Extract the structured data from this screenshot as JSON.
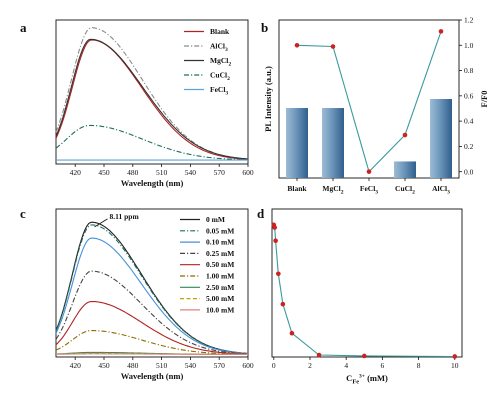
{
  "chart_data": [
    {
      "panel": "a",
      "type": "line",
      "xlabel": "Wavelength (nm)",
      "ylabel": "",
      "xlim": [
        400,
        600
      ],
      "ylim": [
        0,
        1.12
      ],
      "xticks": [
        420,
        450,
        480,
        510,
        540,
        570,
        600
      ],
      "legend_position": "top-right",
      "series": [
        {
          "name": "Blank",
          "color": "#b22222",
          "style": "solid",
          "peak": 0.935,
          "center": 437,
          "w_left": 20,
          "w_right": 52,
          "base": 0.03
        },
        {
          "name": "AlCl",
          "sub": "3",
          "color": "#8c8c8c",
          "style": "dashdot",
          "peak": 1.03,
          "center": 437,
          "w_left": 21,
          "w_right": 53,
          "base": 0.03
        },
        {
          "name": "MgCl",
          "sub": "2",
          "color": "#333333",
          "style": "solid",
          "peak": 0.94,
          "center": 436,
          "w_left": 20,
          "w_right": 54,
          "base": 0.03
        },
        {
          "name": "CuCl",
          "sub": "2",
          "color": "#1f6f5f",
          "style": "dashdot",
          "peak": 0.27,
          "center": 435,
          "w_left": 24,
          "w_right": 55,
          "base": 0.03
        },
        {
          "name": "FeCl",
          "sub": "3",
          "color": "#5aa6d6",
          "style": "solid",
          "peak": 0.0,
          "center": 437,
          "w_left": 20,
          "w_right": 50,
          "base": 0.03
        }
      ]
    },
    {
      "panel": "b",
      "type": "bar",
      "categories": [
        {
          "name": "Blank",
          "sub": ""
        },
        {
          "name": "MgCl",
          "sub": "2"
        },
        {
          "name": "FeCl",
          "sub": "3"
        },
        {
          "name": "CuCl",
          "sub": "2"
        },
        {
          "name": "AlCl",
          "sub": "3"
        }
      ],
      "bar_values": [
        0.93,
        0.93,
        0.0,
        0.22,
        1.05
      ],
      "bar_ylim": [
        0,
        2.1
      ],
      "line_values": [
        1.0,
        0.99,
        0.0,
        0.29,
        1.11
      ],
      "line_color": "#3a9a9a",
      "marker_color": "#cc2222",
      "ylabel_left": "PL Intensity (a.u.)",
      "ylabel_right": "F/F0",
      "ylim_right": [
        -0.05,
        1.2
      ],
      "yticks_right": [
        "0.0",
        "0.2",
        "0.4",
        "0.6",
        "0.8",
        "1.0",
        "1.2"
      ]
    },
    {
      "panel": "c",
      "type": "line",
      "xlabel": "Wavelength (nm)",
      "xlim": [
        400,
        600
      ],
      "ylim": [
        0,
        1.12
      ],
      "xticks": [
        420,
        450,
        480,
        510,
        540,
        570,
        600
      ],
      "annotation": "8.11 ppm",
      "legend_position": "top-right",
      "series": [
        {
          "name": "0 mM",
          "color": "#222222",
          "style": "solid",
          "peak": 1.0,
          "center": 437,
          "w_left": 20,
          "w_right": 52,
          "base": 0.02
        },
        {
          "name": "0.05 mM",
          "color": "#1f6f5f",
          "style": "dashdot",
          "peak": 0.98,
          "center": 437,
          "w_left": 20,
          "w_right": 52,
          "base": 0.02
        },
        {
          "name": "0.10 mM",
          "color": "#4a90d9",
          "style": "solid",
          "peak": 0.88,
          "center": 437,
          "w_left": 20,
          "w_right": 52,
          "base": 0.02
        },
        {
          "name": "0.25 mM",
          "color": "#444444",
          "style": "dashdot",
          "peak": 0.63,
          "center": 437,
          "w_left": 20,
          "w_right": 52,
          "base": 0.02
        },
        {
          "name": "0.50 mM",
          "color": "#b22222",
          "style": "solid",
          "peak": 0.4,
          "center": 437,
          "w_left": 20,
          "w_right": 52,
          "base": 0.02
        },
        {
          "name": "1.00 mM",
          "color": "#8b6b00",
          "style": "dashdot",
          "peak": 0.18,
          "center": 437,
          "w_left": 20,
          "w_right": 52,
          "base": 0.02
        },
        {
          "name": "2.50 mM",
          "color": "#2e8b57",
          "style": "solid",
          "peak": 0.015,
          "center": 437,
          "w_left": 20,
          "w_right": 52,
          "base": 0.02
        },
        {
          "name": "5.00 mM",
          "color": "#c8a000",
          "style": "dashed",
          "peak": 0.008,
          "center": 437,
          "w_left": 20,
          "w_right": 52,
          "base": 0.02
        },
        {
          "name": "10.0 mM",
          "color": "#e08080",
          "style": "solid",
          "peak": 0.004,
          "center": 437,
          "w_left": 20,
          "w_right": 52,
          "base": 0.02
        }
      ]
    },
    {
      "panel": "d",
      "type": "scatter",
      "xlabel": "C",
      "xlabel_sub": "Fe",
      "xlabel_sup": "3+",
      "xlabel_unit": " (mM)",
      "xlim": [
        -0.1,
        10.4
      ],
      "ylim": [
        0,
        1.12
      ],
      "xticks": [
        0,
        2,
        4,
        6,
        8,
        10
      ],
      "x": [
        0,
        0.05,
        0.1,
        0.25,
        0.5,
        1.0,
        2.5,
        5.0,
        10.0
      ],
      "y": [
        1.0,
        0.98,
        0.88,
        0.63,
        0.4,
        0.18,
        0.015,
        0.008,
        0.004
      ],
      "line_color": "#3a9a9a",
      "marker_color": "#cc2222"
    }
  ],
  "labels": {
    "a": "a",
    "b": "b",
    "c": "c",
    "d": "d"
  }
}
